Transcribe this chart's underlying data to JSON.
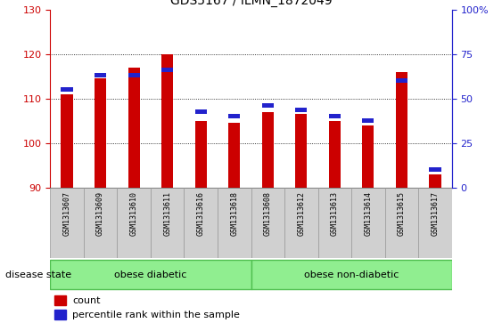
{
  "title": "GDS5167 / ILMN_1872049",
  "samples": [
    "GSM1313607",
    "GSM1313609",
    "GSM1313610",
    "GSM1313611",
    "GSM1313616",
    "GSM1313618",
    "GSM1313608",
    "GSM1313612",
    "GSM1313613",
    "GSM1313614",
    "GSM1313615",
    "GSM1313617"
  ],
  "red_values": [
    111.0,
    114.5,
    117.0,
    120.0,
    105.0,
    104.5,
    107.0,
    106.5,
    105.0,
    104.0,
    116.0,
    93.0
  ],
  "blue_values": [
    111.5,
    114.8,
    114.8,
    116.0,
    106.5,
    105.5,
    108.0,
    107.0,
    105.5,
    104.5,
    113.5,
    93.5
  ],
  "ymin": 90,
  "ymax": 130,
  "yticks_left": [
    90,
    100,
    110,
    120,
    130
  ],
  "yticks_right_pos": [
    90,
    100,
    110,
    120,
    130
  ],
  "yticks_right_labels": [
    "0",
    "25",
    "50",
    "75",
    "100%"
  ],
  "grid_lines": [
    100,
    110,
    120
  ],
  "bar_width": 0.35,
  "red_color": "#cc0000",
  "blue_color": "#2222cc",
  "blue_bar_height": 1.0,
  "plot_bg": "#ffffff",
  "sample_label_bg": "#d0d0d0",
  "group1_label": "obese diabetic",
  "group2_label": "obese non-diabetic",
  "group1_indices": [
    0,
    1,
    2,
    3,
    4,
    5
  ],
  "group2_indices": [
    6,
    7,
    8,
    9,
    10,
    11
  ],
  "group_bg": "#90ee90",
  "group_border": "#50c050",
  "disease_state_label": "disease state",
  "legend_count": "count",
  "legend_percentile": "percentile rank within the sample",
  "title_fontsize": 10,
  "tick_fontsize": 8,
  "sample_fontsize": 6,
  "group_fontsize": 8,
  "legend_fontsize": 8
}
